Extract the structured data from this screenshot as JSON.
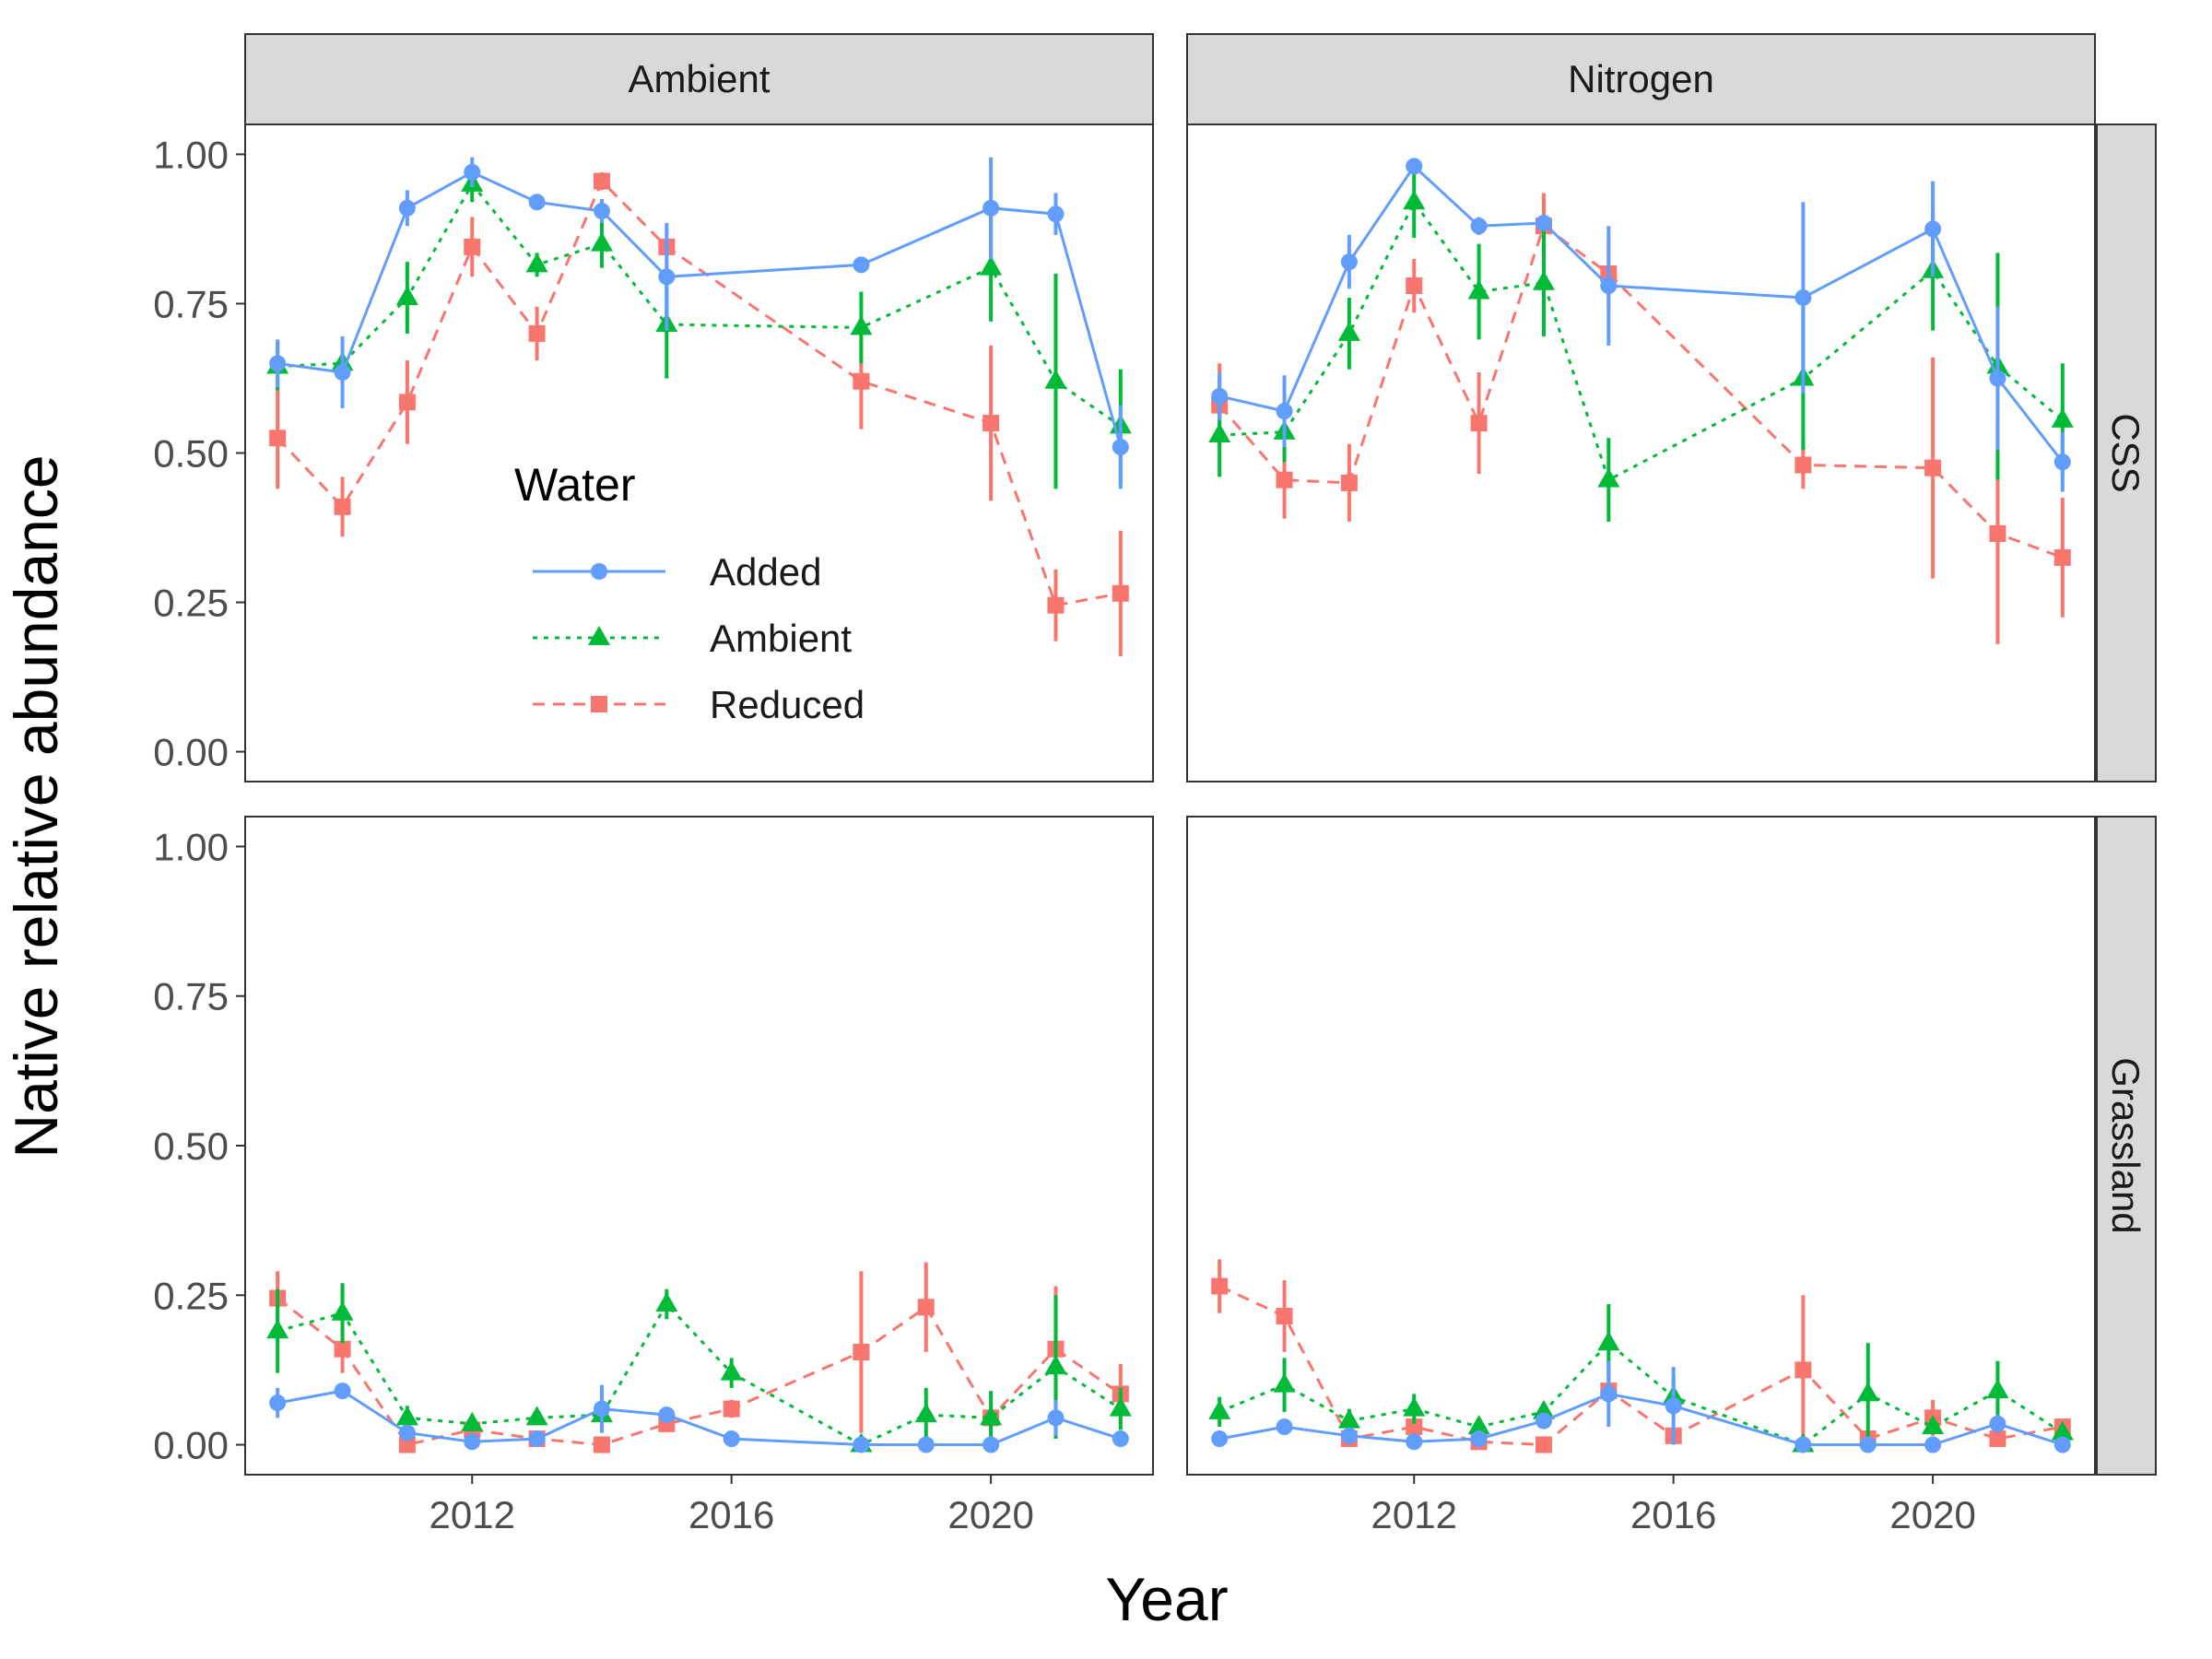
{
  "chart_data": {
    "type": "line",
    "xlabel": "Year",
    "ylabel": "Native relative abundance",
    "xlim": [
      2008.5,
      2022.5
    ],
    "ylim": [
      -0.05,
      1.05
    ],
    "x_ticks": [
      2012,
      2016,
      2020
    ],
    "y_ticks": [
      0,
      0.25,
      0.5,
      0.75,
      1.0
    ],
    "y_tick_labels": [
      "0.00",
      "0.25",
      "0.50",
      "0.75",
      "1.00"
    ],
    "col_facets": [
      "Ambient",
      "Nitrogen"
    ],
    "row_facets": [
      "CSS",
      "Grassland"
    ],
    "legend": {
      "title": "Water",
      "placement": "inside-top-left panel",
      "entries": [
        {
          "label": "Added",
          "color": "#619CFF",
          "shape": "circle",
          "line": "solid"
        },
        {
          "label": "Ambient",
          "color": "#00BA38",
          "shape": "triangle",
          "line": "dotted"
        },
        {
          "label": "Reduced",
          "color": "#F8766D",
          "shape": "square",
          "line": "dashed"
        }
      ]
    },
    "panels": [
      {
        "col": "Ambient",
        "row": "CSS",
        "series": [
          {
            "name": "Added",
            "points": [
              [
                2009,
                0.65,
                0.04
              ],
              [
                2010,
                0.635,
                0.06
              ],
              [
                2011,
                0.91,
                0.03
              ],
              [
                2012,
                0.97,
                0.025
              ],
              [
                2013,
                0.92,
                0.01
              ],
              [
                2014,
                0.905,
                0.02
              ],
              [
                2015,
                0.795,
                0.09
              ],
              [
                2018,
                0.815,
                0.0
              ],
              [
                2020,
                0.91,
                0.085
              ],
              [
                2021,
                0.9,
                0.035
              ],
              [
                2022,
                0.51,
                0.07
              ]
            ]
          },
          {
            "name": "Ambient",
            "points": [
              [
                2009,
                0.645,
                0.04
              ],
              [
                2010,
                0.65,
                0.045
              ],
              [
                2011,
                0.76,
                0.06
              ],
              [
                2012,
                0.95,
                0.03
              ],
              [
                2013,
                0.815,
                0.02
              ],
              [
                2014,
                0.85,
                0.04
              ],
              [
                2015,
                0.715,
                0.09
              ],
              [
                2018,
                0.71,
                0.06
              ],
              [
                2020,
                0.81,
                0.09
              ],
              [
                2021,
                0.62,
                0.18
              ],
              [
                2022,
                0.545,
                0.095
              ]
            ]
          },
          {
            "name": "Reduced",
            "points": [
              [
                2009,
                0.525,
                0.085
              ],
              [
                2010,
                0.41,
                0.05
              ],
              [
                2011,
                0.585,
                0.07
              ],
              [
                2012,
                0.845,
                0.05
              ],
              [
                2013,
                0.7,
                0.045
              ],
              [
                2014,
                0.955,
                0.015
              ],
              [
                2015,
                0.845,
                0.0
              ],
              [
                2018,
                0.62,
                0.08
              ],
              [
                2020,
                0.55,
                0.13
              ],
              [
                2021,
                0.245,
                0.06
              ],
              [
                2022,
                0.265,
                0.105
              ]
            ]
          }
        ]
      },
      {
        "col": "Nitrogen",
        "row": "CSS",
        "series": [
          {
            "name": "Added",
            "points": [
              [
                2009,
                0.595,
                0.04
              ],
              [
                2010,
                0.57,
                0.06
              ],
              [
                2011,
                0.82,
                0.045
              ],
              [
                2012,
                0.98,
                0.01
              ],
              [
                2013,
                0.88,
                0.015
              ],
              [
                2014,
                0.885,
                0.01
              ],
              [
                2015,
                0.78,
                0.1
              ],
              [
                2018,
                0.76,
                0.16
              ],
              [
                2020,
                0.875,
                0.08
              ],
              [
                2021,
                0.625,
                0.12
              ],
              [
                2022,
                0.485,
                0.05
              ]
            ]
          },
          {
            "name": "Ambient",
            "points": [
              [
                2009,
                0.53,
                0.07
              ],
              [
                2010,
                0.535,
                0.05
              ],
              [
                2011,
                0.7,
                0.06
              ],
              [
                2012,
                0.92,
                0.06
              ],
              [
                2013,
                0.77,
                0.08
              ],
              [
                2014,
                0.785,
                0.09
              ],
              [
                2015,
                0.455,
                0.07
              ],
              [
                2018,
                0.625,
                0.12
              ],
              [
                2020,
                0.805,
                0.1
              ],
              [
                2021,
                0.645,
                0.19
              ],
              [
                2022,
                0.555,
                0.095
              ]
            ]
          },
          {
            "name": "Reduced",
            "points": [
              [
                2009,
                0.58,
                0.07
              ],
              [
                2010,
                0.455,
                0.065
              ],
              [
                2011,
                0.45,
                0.065
              ],
              [
                2012,
                0.78,
                0.045
              ],
              [
                2013,
                0.55,
                0.085
              ],
              [
                2014,
                0.88,
                0.055
              ],
              [
                2015,
                0.8,
                0.06
              ],
              [
                2018,
                0.48,
                0.04
              ],
              [
                2020,
                0.475,
                0.185
              ],
              [
                2021,
                0.365,
                0.185
              ],
              [
                2022,
                0.325,
                0.1
              ]
            ]
          }
        ]
      },
      {
        "col": "Ambient",
        "row": "Grassland",
        "series": [
          {
            "name": "Added",
            "points": [
              [
                2009,
                0.07,
                0.025
              ],
              [
                2010,
                0.09,
                0.01
              ],
              [
                2011,
                0.02,
                0.01
              ],
              [
                2012,
                0.005,
                0.005
              ],
              [
                2013,
                0.01,
                0.005
              ],
              [
                2014,
                0.06,
                0.04
              ],
              [
                2015,
                0.05,
                0.005
              ],
              [
                2016,
                0.01,
                0.005
              ],
              [
                2018,
                0.0,
                0.0
              ],
              [
                2019,
                0.0,
                0.0
              ],
              [
                2020,
                0.0,
                0.0
              ],
              [
                2021,
                0.045,
                0.03
              ],
              [
                2022,
                0.01,
                0.005
              ]
            ]
          },
          {
            "name": "Ambient",
            "points": [
              [
                2009,
                0.19,
                0.07
              ],
              [
                2010,
                0.22,
                0.05
              ],
              [
                2011,
                0.045,
                0.02
              ],
              [
                2012,
                0.035,
                0.01
              ],
              [
                2013,
                0.045,
                0.01
              ],
              [
                2014,
                0.05,
                0.03
              ],
              [
                2015,
                0.235,
                0.025
              ],
              [
                2016,
                0.12,
                0.025
              ],
              [
                2018,
                0.0,
                0.0
              ],
              [
                2019,
                0.05,
                0.045
              ],
              [
                2020,
                0.045,
                0.045
              ],
              [
                2021,
                0.13,
                0.12
              ],
              [
                2022,
                0.06,
                0.035
              ]
            ]
          },
          {
            "name": "Reduced",
            "points": [
              [
                2009,
                0.245,
                0.045
              ],
              [
                2010,
                0.16,
                0.04
              ],
              [
                2011,
                0.0,
                0.0
              ],
              [
                2012,
                0.025,
                0.01
              ],
              [
                2013,
                0.01,
                0.005
              ],
              [
                2014,
                0.0,
                0.0
              ],
              [
                2015,
                0.035,
                0.01
              ],
              [
                2016,
                0.06,
                0.015
              ],
              [
                2018,
                0.155,
                0.135
              ],
              [
                2019,
                0.23,
                0.075
              ],
              [
                2020,
                0.045,
                0.02
              ],
              [
                2021,
                0.16,
                0.105
              ],
              [
                2022,
                0.085,
                0.05
              ]
            ]
          }
        ]
      },
      {
        "col": "Nitrogen",
        "row": "Grassland",
        "series": [
          {
            "name": "Added",
            "points": [
              [
                2009,
                0.01,
                0.005
              ],
              [
                2010,
                0.03,
                0.01
              ],
              [
                2011,
                0.015,
                0.005
              ],
              [
                2012,
                0.005,
                0.005
              ],
              [
                2013,
                0.01,
                0.005
              ],
              [
                2014,
                0.04,
                0.01
              ],
              [
                2015,
                0.085,
                0.055
              ],
              [
                2016,
                0.065,
                0.065
              ],
              [
                2018,
                0.0,
                0.0
              ],
              [
                2019,
                0.0,
                0.0
              ],
              [
                2020,
                0.0,
                0.0
              ],
              [
                2021,
                0.035,
                0.015
              ],
              [
                2022,
                0.0,
                0.0
              ]
            ]
          },
          {
            "name": "Ambient",
            "points": [
              [
                2009,
                0.055,
                0.025
              ],
              [
                2010,
                0.1,
                0.045
              ],
              [
                2011,
                0.04,
                0.02
              ],
              [
                2012,
                0.06,
                0.025
              ],
              [
                2013,
                0.03,
                0.01
              ],
              [
                2014,
                0.055,
                0.01
              ],
              [
                2015,
                0.17,
                0.065
              ],
              [
                2016,
                0.08,
                0.035
              ],
              [
                2018,
                0.0,
                0.0
              ],
              [
                2019,
                0.085,
                0.085
              ],
              [
                2020,
                0.03,
                0.01
              ],
              [
                2021,
                0.09,
                0.05
              ],
              [
                2022,
                0.02,
                0.01
              ]
            ]
          },
          {
            "name": "Reduced",
            "points": [
              [
                2009,
                0.265,
                0.045
              ],
              [
                2010,
                0.215,
                0.06
              ],
              [
                2011,
                0.01,
                0.005
              ],
              [
                2012,
                0.03,
                0.01
              ],
              [
                2013,
                0.005,
                0.005
              ],
              [
                2014,
                0.0,
                0.0
              ],
              [
                2015,
                0.09,
                0.02
              ],
              [
                2016,
                0.015,
                0.01
              ],
              [
                2018,
                0.125,
                0.125
              ],
              [
                2019,
                0.01,
                0.005
              ],
              [
                2020,
                0.045,
                0.03
              ],
              [
                2021,
                0.01,
                0.005
              ],
              [
                2022,
                0.03,
                0.01
              ]
            ]
          }
        ]
      }
    ]
  }
}
